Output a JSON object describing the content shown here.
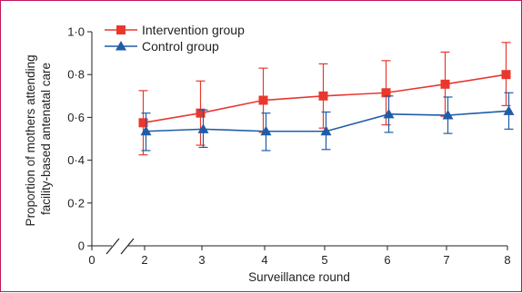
{
  "chart_data": {
    "type": "line",
    "xlabel": "Surveillance round",
    "ylabel_lines": [
      "Proportion of mothers attending",
      "facility-based antenatal care"
    ],
    "x_ticks": [
      0,
      2,
      3,
      4,
      5,
      6,
      7,
      8
    ],
    "y_ticks": [
      0,
      0.2,
      0.4,
      0.6,
      0.8,
      1.0
    ],
    "y_tick_labels": [
      "0",
      "0·2",
      "0·4",
      "0·6",
      "0·8",
      "1·0"
    ],
    "xlim": [
      0,
      8
    ],
    "ylim": [
      0,
      1.0
    ],
    "axis_break": "between 0 and 2",
    "grid": false,
    "legend_position": "top-left",
    "series": [
      {
        "name": "Intervention group",
        "color": "#e8382e",
        "marker": "square",
        "x": [
          2,
          3,
          4,
          5,
          6,
          7,
          8
        ],
        "y": [
          0.575,
          0.62,
          0.68,
          0.7,
          0.715,
          0.755,
          0.8
        ],
        "error_low": [
          0.425,
          0.47,
          0.53,
          0.55,
          0.565,
          0.605,
          0.655
        ],
        "error_high": [
          0.725,
          0.77,
          0.83,
          0.85,
          0.865,
          0.905,
          0.95
        ]
      },
      {
        "name": "Control group",
        "color": "#1f5ca8",
        "marker": "triangle",
        "x": [
          2,
          3,
          4,
          5,
          6,
          7,
          8
        ],
        "y": [
          0.535,
          0.545,
          0.535,
          0.535,
          0.615,
          0.61,
          0.63
        ],
        "error_low": [
          0.445,
          0.46,
          0.445,
          0.45,
          0.53,
          0.525,
          0.545
        ],
        "error_high": [
          0.62,
          0.635,
          0.62,
          0.625,
          0.7,
          0.695,
          0.715
        ]
      }
    ]
  }
}
